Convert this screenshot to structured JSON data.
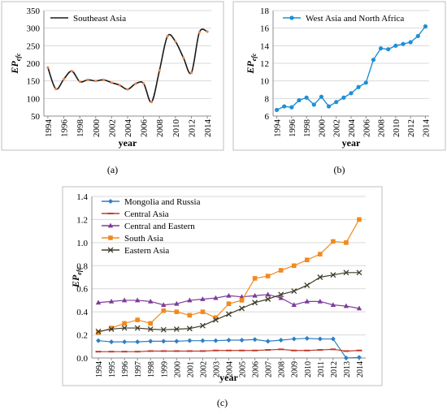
{
  "chart_data": [
    {
      "panel": "a",
      "type": "line",
      "caption": "(a)",
      "xlabel": "year",
      "ylabel_main": "EP",
      "ylabel_sub": "efc",
      "ylim": [
        50,
        350
      ],
      "yticks": [
        50,
        100,
        150,
        200,
        250,
        300,
        350
      ],
      "xlim": [
        1993.5,
        2014.5
      ],
      "xtick_labels": [
        "1994",
        "1996",
        "1998",
        "2000",
        "2002",
        "2004",
        "2006",
        "2008",
        "2010",
        "2012",
        "2014"
      ],
      "grid": true,
      "legend": "top-left",
      "series": [
        {
          "name": "Southeast Asia",
          "color": "#1a1a1a",
          "marker_color": "#f08a4b",
          "x": [
            1994,
            1995,
            1996,
            1997,
            1998,
            1999,
            2000,
            2001,
            2002,
            2003,
            2004,
            2005,
            2006,
            2007,
            2008,
            2009,
            2010,
            2011,
            2012,
            2013,
            2014
          ],
          "values": [
            188,
            127,
            155,
            178,
            148,
            153,
            150,
            153,
            145,
            138,
            126,
            142,
            143,
            90,
            180,
            277,
            262,
            216,
            173,
            288,
            290
          ]
        }
      ]
    },
    {
      "panel": "b",
      "type": "line",
      "caption": "(b)",
      "xlabel": "year",
      "ylabel_main": "EP",
      "ylabel_sub": "efc",
      "ylim": [
        6,
        18
      ],
      "yticks": [
        6,
        8,
        10,
        12,
        14,
        16,
        18
      ],
      "xlim": [
        1993.5,
        2014.5
      ],
      "xtick_labels": [
        "1994",
        "1996",
        "1998",
        "2000",
        "2002",
        "2004",
        "2006",
        "2008",
        "2010",
        "2012",
        "2014"
      ],
      "grid": true,
      "legend": "top-left",
      "series": [
        {
          "name": "West Asia and North Africa",
          "color": "#1f8fd6",
          "x": [
            1994,
            1995,
            1996,
            1997,
            1998,
            1999,
            2000,
            2001,
            2002,
            2003,
            2004,
            2005,
            2006,
            2007,
            2008,
            2009,
            2010,
            2011,
            2012,
            2013,
            2014
          ],
          "values": [
            6.7,
            7.1,
            7.0,
            7.8,
            8.1,
            7.3,
            8.2,
            7.1,
            7.6,
            8.1,
            8.6,
            9.3,
            9.8,
            12.4,
            13.7,
            13.6,
            14.0,
            14.2,
            14.4,
            15.1,
            16.2
          ]
        }
      ]
    },
    {
      "panel": "c",
      "type": "line",
      "caption": "(c)",
      "xlabel": "year",
      "ylabel_main": "EP",
      "ylabel_sub": "efc",
      "ylim": [
        0,
        1.4
      ],
      "yticks": [
        0,
        0.2,
        0.4,
        0.6,
        0.8,
        1.0,
        1.2,
        1.4
      ],
      "ytick_labels": [
        "0.0",
        "0.2",
        "0.4",
        "0.6",
        "0.8",
        "1.0",
        "1.2",
        "1.4"
      ],
      "xlim": [
        1993.5,
        2014.5
      ],
      "xtick_labels": [
        "1994",
        "1995",
        "1996",
        "1997",
        "1998",
        "1999",
        "2000",
        "2001",
        "2002",
        "2003",
        "2004",
        "2005",
        "2006",
        "2007",
        "2008",
        "2009",
        "2010",
        "2011",
        "2012",
        "2013",
        "2014"
      ],
      "grid": true,
      "legend": "top-left",
      "series": [
        {
          "name": "Mongolia and Russia",
          "color": "#2e7fc4",
          "marker": "diamond",
          "x": [
            1994,
            1995,
            1996,
            1997,
            1998,
            1999,
            2000,
            2001,
            2002,
            2003,
            2004,
            2005,
            2006,
            2007,
            2008,
            2009,
            2010,
            2011,
            2012,
            2013,
            2014
          ],
          "values": [
            0.15,
            0.14,
            0.14,
            0.14,
            0.145,
            0.145,
            0.145,
            0.15,
            0.15,
            0.15,
            0.155,
            0.155,
            0.16,
            0.145,
            0.155,
            0.165,
            0.17,
            0.165,
            0.165,
            0.0,
            0.005
          ]
        },
        {
          "name": "Central Asia",
          "color": "#c0392b",
          "marker": "dash",
          "x": [
            1994,
            1995,
            1996,
            1997,
            1998,
            1999,
            2000,
            2001,
            2002,
            2003,
            2004,
            2005,
            2006,
            2007,
            2008,
            2009,
            2010,
            2011,
            2012,
            2013,
            2014
          ],
          "values": [
            0.055,
            0.055,
            0.055,
            0.055,
            0.06,
            0.06,
            0.06,
            0.06,
            0.06,
            0.065,
            0.065,
            0.065,
            0.065,
            0.07,
            0.075,
            0.065,
            0.065,
            0.07,
            0.075,
            0.06,
            0.065
          ]
        },
        {
          "name": "Central and Eastern",
          "color": "#7d3c98",
          "marker": "triangle",
          "x": [
            1994,
            1995,
            1996,
            1997,
            1998,
            1999,
            2000,
            2001,
            2002,
            2003,
            2004,
            2005,
            2006,
            2007,
            2008,
            2009,
            2010,
            2011,
            2012,
            2013,
            2014
          ],
          "values": [
            0.48,
            0.49,
            0.5,
            0.5,
            0.49,
            0.46,
            0.47,
            0.5,
            0.51,
            0.52,
            0.54,
            0.53,
            0.54,
            0.55,
            0.52,
            0.46,
            0.49,
            0.49,
            0.46,
            0.45,
            0.43
          ]
        },
        {
          "name": "South Asia",
          "color": "#f28a1e",
          "marker": "square",
          "x": [
            1994,
            1995,
            1996,
            1997,
            1998,
            1999,
            2000,
            2001,
            2002,
            2003,
            2004,
            2005,
            2006,
            2007,
            2008,
            2009,
            2010,
            2011,
            2012,
            2013,
            2014
          ],
          "values": [
            0.22,
            0.26,
            0.3,
            0.33,
            0.3,
            0.41,
            0.4,
            0.37,
            0.4,
            0.35,
            0.47,
            0.5,
            0.69,
            0.71,
            0.76,
            0.8,
            0.85,
            0.9,
            1.01,
            1.0,
            1.2
          ]
        },
        {
          "name": "Eastern Asia",
          "color": "#3d3d29",
          "marker": "x",
          "x": [
            1994,
            1995,
            1996,
            1997,
            1998,
            1999,
            2000,
            2001,
            2002,
            2003,
            2004,
            2005,
            2006,
            2007,
            2008,
            2009,
            2010,
            2011,
            2012,
            2013,
            2014
          ],
          "values": [
            0.23,
            0.25,
            0.26,
            0.26,
            0.25,
            0.245,
            0.25,
            0.255,
            0.28,
            0.33,
            0.38,
            0.43,
            0.48,
            0.51,
            0.55,
            0.58,
            0.63,
            0.7,
            0.72,
            0.74,
            0.74
          ]
        }
      ]
    }
  ]
}
